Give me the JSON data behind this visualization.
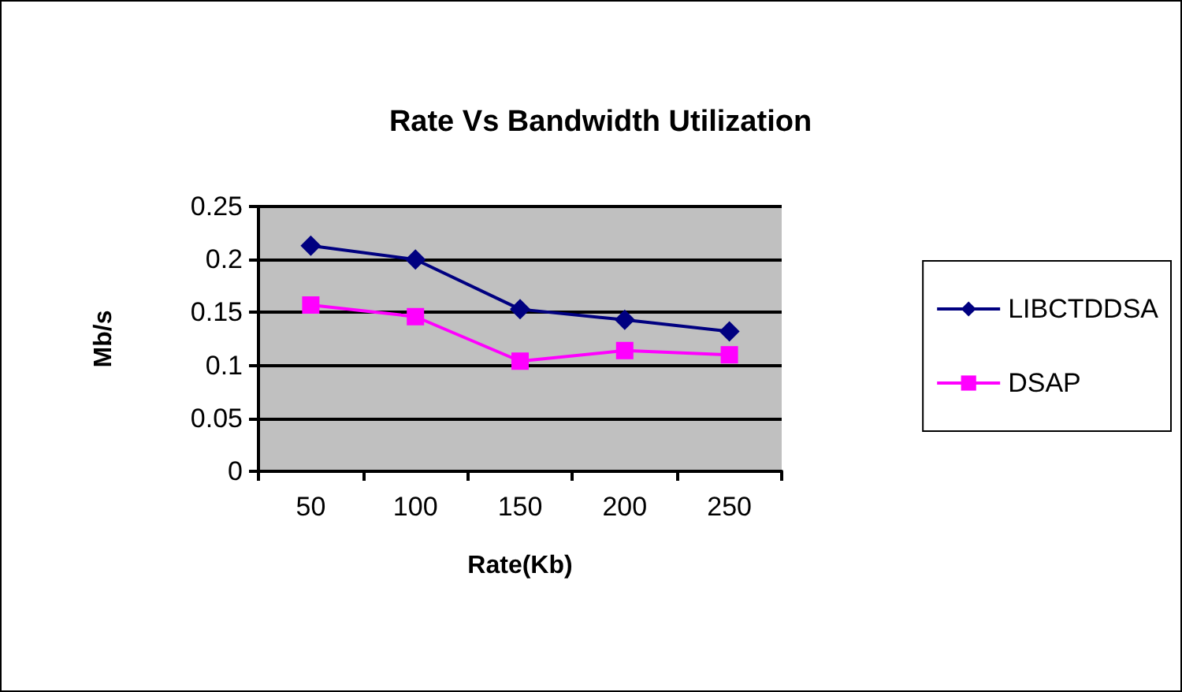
{
  "chart_data": {
    "type": "line",
    "title": "Rate Vs Bandwidth Utilization",
    "xlabel": "Rate(Kb)",
    "ylabel": "Mb/s",
    "categories": [
      "50",
      "100",
      "150",
      "200",
      "250"
    ],
    "series": [
      {
        "name": "LIBCTDDSA",
        "color": "#000080",
        "marker": "diamond",
        "values": [
          0.213,
          0.2,
          0.153,
          0.143,
          0.132
        ]
      },
      {
        "name": "DSAP",
        "color": "#ff00ff",
        "marker": "square",
        "values": [
          0.157,
          0.146,
          0.104,
          0.114,
          0.11
        ]
      }
    ],
    "ylim": [
      0,
      0.25
    ],
    "yticks": [
      0,
      0.05,
      0.1,
      0.15,
      0.2,
      0.25
    ],
    "grid": "y",
    "legend": "right",
    "line_style": "solid"
  }
}
